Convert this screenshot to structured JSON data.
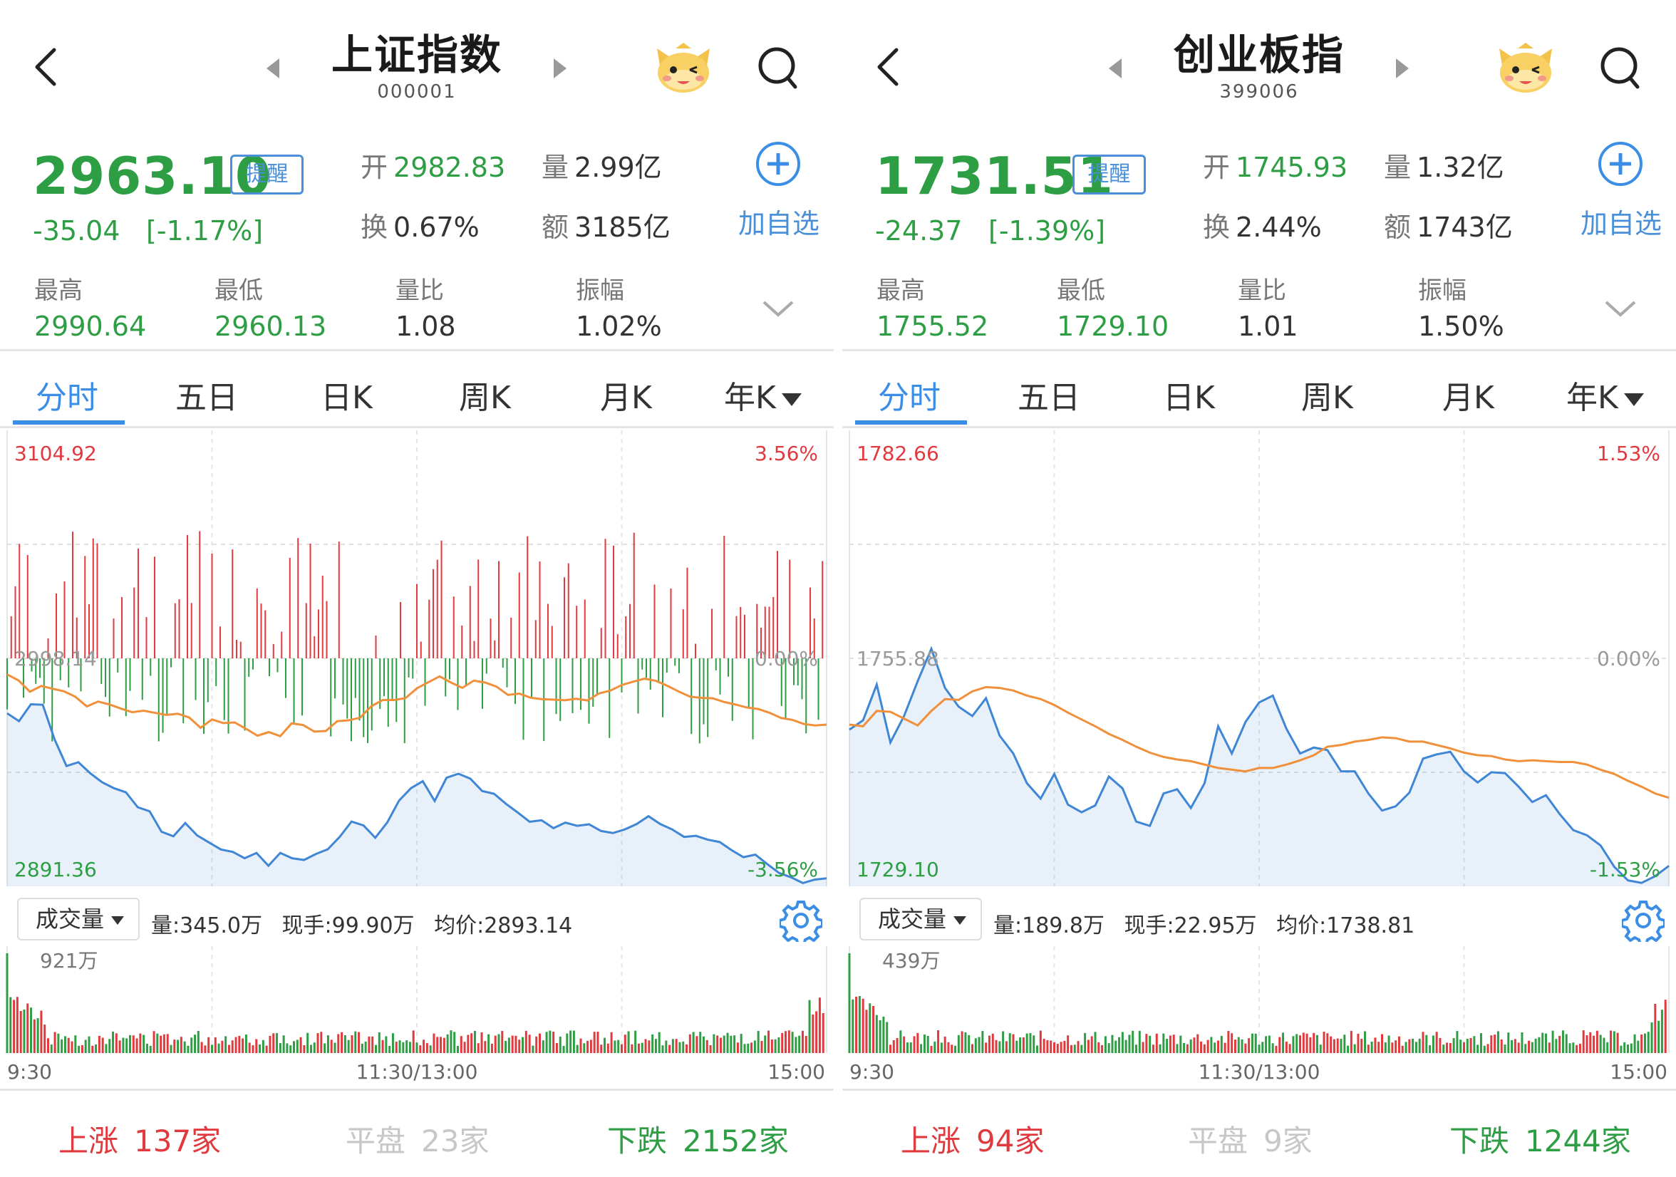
{
  "panels": [
    {
      "title": "上证指数",
      "code": "000001",
      "price": "2963.10",
      "remind_label": "提醒",
      "change": "-35.04",
      "change_pct": "[-1.17%]",
      "open_label": "开",
      "open": "2982.83",
      "volume_label": "量",
      "volume": "2.99亿",
      "turnover_label": "换",
      "turnover": "0.67%",
      "amount_label": "额",
      "amount": "3185亿",
      "add_label": "加自选",
      "stats": [
        {
          "label": "最高",
          "value": "2990.64",
          "color": "green"
        },
        {
          "label": "最低",
          "value": "2960.13",
          "color": "green"
        },
        {
          "label": "量比",
          "value": "1.08",
          "color": "dark"
        },
        {
          "label": "振幅",
          "value": "1.02%",
          "color": "dark"
        }
      ],
      "tabs": [
        "分时",
        "五日",
        "日K",
        "周K",
        "月K",
        "年K"
      ],
      "active_tab": 0,
      "chart_top_value": "3104.92",
      "chart_top_pct": "3.56%",
      "chart_mid_value": "2998.14",
      "chart_mid_pct": "0.00%",
      "chart_bot_value": "2891.36",
      "chart_bot_pct": "-3.56%",
      "vol_dropdown": "成交量",
      "vol_info": {
        "qty": "量:345.0万",
        "now": "现手:99.90万",
        "avg": "均价:2893.14"
      },
      "vol_max": "921万",
      "time_start": "9:30",
      "time_mid": "11:30/13:00",
      "time_end": "15:00",
      "up_label": "上涨",
      "up_count": "137家",
      "flat_label": "平盘",
      "flat_count": "23家",
      "down_label": "下跌",
      "down_count": "2152家",
      "chart_data": {
        "type": "line",
        "ylim": [
          2891.36,
          3104.92
        ],
        "series": [
          {
            "values": [
              2990.6,
              2987.8,
              2982.5,
              2985.2,
              2983.9,
              2982.7,
              2980.1,
              2975.6,
              2977.9,
              2976.5,
              2974.6,
              2972.9,
              2973.6,
              2972.6,
              2971.6,
              2972.2,
              2970.4,
              2965.6,
              2969.5,
              2967.8,
              2968.1,
              2965.1,
              2961.9,
              2963.6,
              2961.7,
              2967.7,
              2966.9,
              2963.8,
              2964.1,
              2968.7,
              2969.1,
              2970.3,
              2975.7,
              2978.6,
              2978.6,
              2979.5,
              2984.1,
              2986.9,
              2989.7,
              2986.8,
              2984.3,
              2987.7,
              2986.8,
              2984.9,
              2981.0,
              2981.6,
              2979.7,
              2979.0,
              2978.8,
              2978.5,
              2979.2,
              2978.4,
              2981.7,
              2983.0,
              2985.6,
              2987.2,
              2988.6,
              2987.6,
              2985.3,
              2982.6,
              2980.2,
              2979.6,
              2979.4,
              2977.7,
              2976.5,
              2975.1,
              2974.4,
              2972.6,
              2970.2,
              2969.3,
              2967.4,
              2966.7,
              2967.1
            ]
          },
          {
            "values": [
              2972.4,
              2968.7,
              2976.6,
              2976.4,
              2960.1,
              2947.7,
              2949.5,
              2944.3,
              2940.1,
              2937.3,
              2935.4,
              2928.4,
              2926.5,
              2916.9,
              2914.8,
              2921.0,
              2915.2,
              2911.9,
              2908.6,
              2907.5,
              2904.5,
              2907.0,
              2901.0,
              2907.0,
              2904.5,
              2903.7,
              2906.5,
              2908.7,
              2914.5,
              2921.7,
              2919.9,
              2914.1,
              2921.2,
              2931.5,
              2937.3,
              2940.6,
              2931.3,
              2942.2,
              2944.1,
              2941.8,
              2936.0,
              2934.7,
              2930.0,
              2925.9,
              2921.6,
              2922.3,
              2918.6,
              2921.2,
              2919.7,
              2920.4,
              2917.3,
              2916.3,
              2918.0,
              2920.5,
              2924.2,
              2920.5,
              2918.0,
              2914.5,
              2915.0,
              2913.2,
              2912.1,
              2908.3,
              2905.0,
              2906.2,
              2901.8,
              2897.6,
              2895.6,
              2892.9,
              2894.5,
              2895.1
            ]
          }
        ]
      }
    },
    {
      "title": "创业板指",
      "code": "399006",
      "price": "1731.51",
      "remind_label": "提醒",
      "change": "-24.37",
      "change_pct": "[-1.39%]",
      "open_label": "开",
      "open": "1745.93",
      "volume_label": "量",
      "volume": "1.32亿",
      "turnover_label": "换",
      "turnover": "2.44%",
      "amount_label": "额",
      "amount": "1743亿",
      "add_label": "加自选",
      "stats": [
        {
          "label": "最高",
          "value": "1755.52",
          "color": "green"
        },
        {
          "label": "最低",
          "value": "1729.10",
          "color": "green"
        },
        {
          "label": "量比",
          "value": "1.01",
          "color": "dark"
        },
        {
          "label": "振幅",
          "value": "1.50%",
          "color": "dark"
        }
      ],
      "tabs": [
        "分时",
        "五日",
        "日K",
        "周K",
        "月K",
        "年K"
      ],
      "active_tab": 0,
      "chart_top_value": "1782.66",
      "chart_top_pct": "1.53%",
      "chart_mid_value": "1755.88",
      "chart_mid_pct": "0.00%",
      "chart_bot_value": "1729.10",
      "chart_bot_pct": "-1.53%",
      "vol_dropdown": "成交量",
      "vol_info": {
        "qty": "量:189.8万",
        "now": "现手:22.95万",
        "avg": "均价:1738.81"
      },
      "vol_max": "439万",
      "time_start": "9:30",
      "time_mid": "11:30/13:00",
      "time_end": "15:00",
      "up_label": "上涨",
      "up_count": "94家",
      "flat_label": "平盘",
      "flat_count": "9家",
      "down_label": "下跌",
      "down_count": "1244家",
      "chart_data": {
        "type": "line",
        "ylim": [
          1729.1,
          1782.66
        ],
        "series": [
          {
            "values": [
              1748.1,
              1747.9,
              1749.7,
              1749.6,
              1748.8,
              1748.0,
              1749.7,
              1751.1,
              1751.0,
              1752.0,
              1752.5,
              1752.4,
              1752.1,
              1751.5,
              1751.1,
              1750.4,
              1749.5,
              1748.7,
              1747.9,
              1747.0,
              1746.3,
              1745.5,
              1744.8,
              1744.3,
              1744.0,
              1743.8,
              1743.4,
              1743.0,
              1742.8,
              1742.6,
              1743.0,
              1743.0,
              1743.4,
              1743.9,
              1744.5,
              1745.5,
              1745.7,
              1746.1,
              1746.3,
              1746.6,
              1746.5,
              1746.1,
              1746.1,
              1745.7,
              1745.3,
              1744.8,
              1744.5,
              1744.4,
              1744.0,
              1743.8,
              1743.9,
              1743.8,
              1743.7,
              1743.7,
              1743.4,
              1742.8,
              1742.3,
              1741.5,
              1740.8,
              1740.0,
              1739.5
            ]
          },
          {
            "values": [
              1747.5,
              1748.6,
              1752.8,
              1746.0,
              1749.1,
              1753.2,
              1757.0,
              1752.4,
              1750.2,
              1749.1,
              1751.2,
              1746.8,
              1744.7,
              1741.2,
              1739.4,
              1742.3,
              1738.7,
              1737.8,
              1738.6,
              1742.0,
              1740.6,
              1736.7,
              1736.2,
              1740.0,
              1740.5,
              1738.3,
              1741.2,
              1747.9,
              1744.7,
              1748.4,
              1750.7,
              1751.5,
              1747.6,
              1744.7,
              1745.4,
              1745.1,
              1742.6,
              1742.6,
              1740.0,
              1738.0,
              1738.5,
              1740.1,
              1744.1,
              1744.6,
              1744.9,
              1742.6,
              1741.3,
              1742.5,
              1742.4,
              1740.8,
              1739.0,
              1739.8,
              1737.6,
              1735.7,
              1735.1,
              1733.9,
              1731.4,
              1729.8,
              1729.5,
              1730.3,
              1731.5
            ]
          }
        ]
      }
    }
  ],
  "colors": {
    "accent": "#3a8ee6",
    "up": "#e0393e",
    "down": "#2e9e44",
    "price_line": "#3f86d6",
    "avg_line": "#f0903a"
  }
}
